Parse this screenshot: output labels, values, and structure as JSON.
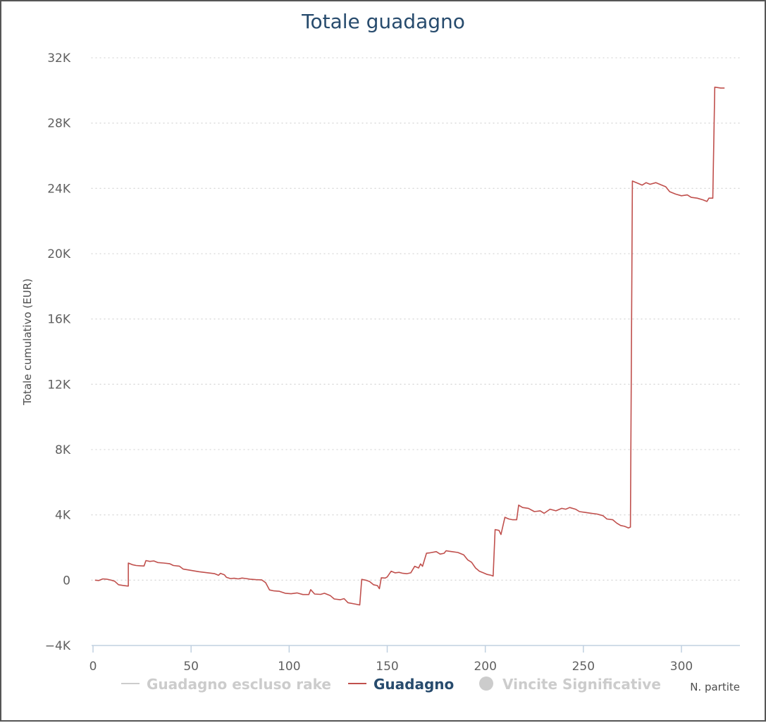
{
  "chart_data": {
    "type": "line",
    "title": "Totale guadagno",
    "xlabel": "N. partite",
    "ylabel": "Totale cumulativo (EUR)",
    "xlim": [
      0,
      330
    ],
    "ylim": [
      -4000,
      32000
    ],
    "x_ticks": [
      0,
      50,
      100,
      150,
      200,
      250,
      300
    ],
    "y_ticks": [
      -4000,
      0,
      4000,
      8000,
      12000,
      16000,
      20000,
      24000,
      28000,
      32000
    ],
    "y_tick_labels": [
      "−4K",
      "0",
      "4K",
      "8K",
      "12K",
      "16K",
      "20K",
      "24K",
      "28K",
      "32K"
    ],
    "grid": "horizontal-dotted",
    "legend_position": "bottom",
    "series": [
      {
        "name": "Guadagno escluso rake",
        "color": "#cccccc",
        "hidden": true,
        "marker": "line",
        "points": []
      },
      {
        "name": "Guadagno",
        "color": "#c0504d",
        "hidden": false,
        "marker": "line",
        "points": [
          [
            1,
            0
          ],
          [
            3,
            -20
          ],
          [
            5,
            80
          ],
          [
            7,
            60
          ],
          [
            9,
            10
          ],
          [
            11,
            -60
          ],
          [
            13,
            -280
          ],
          [
            15,
            -320
          ],
          [
            17,
            -350
          ],
          [
            18,
            -360
          ],
          [
            18,
            1050
          ],
          [
            20,
            950
          ],
          [
            22,
            900
          ],
          [
            24,
            880
          ],
          [
            26,
            870
          ],
          [
            27,
            1200
          ],
          [
            29,
            1150
          ],
          [
            31,
            1180
          ],
          [
            33,
            1080
          ],
          [
            36,
            1050
          ],
          [
            39,
            1010
          ],
          [
            41,
            900
          ],
          [
            44,
            860
          ],
          [
            46,
            680
          ],
          [
            50,
            600
          ],
          [
            54,
            520
          ],
          [
            58,
            460
          ],
          [
            62,
            400
          ],
          [
            64,
            300
          ],
          [
            65,
            420
          ],
          [
            67,
            330
          ],
          [
            68,
            180
          ],
          [
            70,
            100
          ],
          [
            72,
            120
          ],
          [
            74,
            80
          ],
          [
            76,
            130
          ],
          [
            78,
            100
          ],
          [
            80,
            60
          ],
          [
            83,
            30
          ],
          [
            86,
            20
          ],
          [
            88,
            -150
          ],
          [
            90,
            -600
          ],
          [
            92,
            -650
          ],
          [
            95,
            -680
          ],
          [
            98,
            -800
          ],
          [
            101,
            -830
          ],
          [
            104,
            -780
          ],
          [
            107,
            -880
          ],
          [
            110,
            -880
          ],
          [
            111,
            -580
          ],
          [
            113,
            -850
          ],
          [
            116,
            -870
          ],
          [
            118,
            -800
          ],
          [
            121,
            -950
          ],
          [
            123,
            -1150
          ],
          [
            126,
            -1200
          ],
          [
            128,
            -1130
          ],
          [
            130,
            -1380
          ],
          [
            133,
            -1450
          ],
          [
            136,
            -1520
          ],
          [
            137,
            50
          ],
          [
            139,
            0
          ],
          [
            141,
            -80
          ],
          [
            143,
            -280
          ],
          [
            145,
            -330
          ],
          [
            146,
            -520
          ],
          [
            147,
            150
          ],
          [
            149,
            130
          ],
          [
            150,
            200
          ],
          [
            152,
            550
          ],
          [
            154,
            450
          ],
          [
            156,
            480
          ],
          [
            158,
            420
          ],
          [
            160,
            400
          ],
          [
            162,
            450
          ],
          [
            164,
            850
          ],
          [
            166,
            750
          ],
          [
            167,
            1000
          ],
          [
            168,
            850
          ],
          [
            170,
            1650
          ],
          [
            172,
            1680
          ],
          [
            175,
            1750
          ],
          [
            177,
            1600
          ],
          [
            179,
            1650
          ],
          [
            180,
            1800
          ],
          [
            183,
            1750
          ],
          [
            186,
            1700
          ],
          [
            189,
            1550
          ],
          [
            191,
            1250
          ],
          [
            193,
            1100
          ],
          [
            195,
            750
          ],
          [
            197,
            550
          ],
          [
            199,
            450
          ],
          [
            201,
            350
          ],
          [
            203,
            300
          ],
          [
            204,
            250
          ],
          [
            205,
            3100
          ],
          [
            207,
            3050
          ],
          [
            208,
            2800
          ],
          [
            210,
            3850
          ],
          [
            212,
            3750
          ],
          [
            214,
            3700
          ],
          [
            216,
            3700
          ],
          [
            217,
            4600
          ],
          [
            219,
            4450
          ],
          [
            222,
            4400
          ],
          [
            225,
            4200
          ],
          [
            228,
            4250
          ],
          [
            230,
            4100
          ],
          [
            233,
            4350
          ],
          [
            236,
            4250
          ],
          [
            239,
            4400
          ],
          [
            241,
            4350
          ],
          [
            243,
            4450
          ],
          [
            246,
            4350
          ],
          [
            248,
            4200
          ],
          [
            251,
            4150
          ],
          [
            254,
            4100
          ],
          [
            257,
            4050
          ],
          [
            260,
            3950
          ],
          [
            262,
            3750
          ],
          [
            265,
            3700
          ],
          [
            267,
            3500
          ],
          [
            269,
            3350
          ],
          [
            271,
            3300
          ],
          [
            273,
            3200
          ],
          [
            274,
            3250
          ],
          [
            275,
            24450
          ],
          [
            278,
            24300
          ],
          [
            280,
            24200
          ],
          [
            282,
            24350
          ],
          [
            284,
            24250
          ],
          [
            287,
            24350
          ],
          [
            290,
            24200
          ],
          [
            292,
            24100
          ],
          [
            294,
            23800
          ],
          [
            297,
            23650
          ],
          [
            300,
            23550
          ],
          [
            303,
            23600
          ],
          [
            305,
            23450
          ],
          [
            308,
            23400
          ],
          [
            311,
            23300
          ],
          [
            313,
            23200
          ],
          [
            314,
            23400
          ],
          [
            316,
            23400
          ],
          [
            317,
            30200
          ],
          [
            320,
            30150
          ],
          [
            322,
            30150
          ]
        ]
      },
      {
        "name": "Vincite Significative",
        "color": "#cccccc",
        "hidden": true,
        "marker": "circle",
        "points": []
      }
    ]
  },
  "legend_inactive_color": "#cccccc",
  "legend_active_color": "#274b6d",
  "axis_color": "#c0d0e0"
}
